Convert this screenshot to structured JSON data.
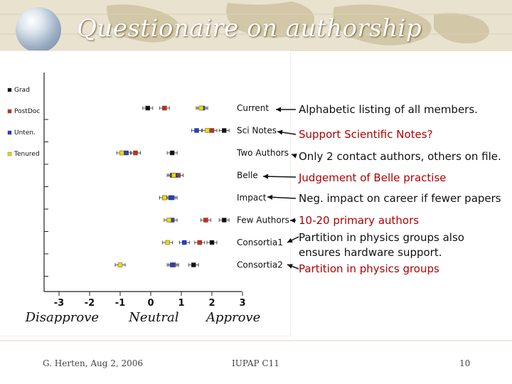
{
  "slide": {
    "title": "Questionaire on authorship",
    "footer": {
      "left": "G. Herten,  Aug 2, 2006",
      "center": "IUPAP C11",
      "right": "10"
    }
  },
  "annotations": [
    {
      "text": "Alphabetic listing of all members.",
      "color": "#111111"
    },
    {
      "text": "Support Scientific Notes?",
      "color": "#b00000"
    },
    {
      "text": "Only 2 contact authors, others on file.",
      "color": "#111111"
    },
    {
      "text": "Judgement of Belle practise",
      "color": "#b00000"
    },
    {
      "text": "Neg. impact on career if fewer papers",
      "color": "#111111"
    },
    {
      "text": "10-20 primary authors",
      "color": "#b00000"
    },
    {
      "text": "Partition in physics groups also",
      "color": "#111111"
    },
    {
      "text": "ensures hardware support.",
      "color": "#111111"
    },
    {
      "text": "Partition in physics groups",
      "color": "#b00000"
    }
  ],
  "chart_data": {
    "type": "scatter",
    "categories": [
      "Current",
      "Sci Notes",
      "Two Authors",
      "Belle",
      "Impact",
      "Few Authors",
      "Consortia1",
      "Consortia2"
    ],
    "x_ticks": [
      "-3",
      "-2",
      "-1",
      "0",
      "1",
      "2",
      "3"
    ],
    "xlim": [
      -3.5,
      3.5
    ],
    "bottom_labels": [
      {
        "text": "Disapprove",
        "at": -2.9
      },
      {
        "text": "Neutral",
        "at": 0.1
      },
      {
        "text": "Approve",
        "at": 2.7
      }
    ],
    "legend_position": "left",
    "series": [
      {
        "name": "Grad",
        "color": "#111111",
        "values": [
          -0.1,
          2.4,
          0.7,
          0.7,
          0.65,
          2.4,
          2.0,
          1.4
        ]
      },
      {
        "name": "PostDoc",
        "color": "#d42a16",
        "values": [
          0.45,
          2.0,
          -0.5,
          0.9,
          0.45,
          1.8,
          1.6,
          0.75
        ]
      },
      {
        "name": "Unten.",
        "color": "#1c3fd6",
        "values": [
          1.7,
          1.5,
          -0.8,
          0.8,
          0.7,
          0.7,
          1.1,
          0.7
        ]
      },
      {
        "name": "Tenured",
        "color": "#f0d800",
        "values": [
          1.65,
          1.85,
          -0.95,
          0.75,
          0.45,
          0.6,
          0.55,
          -1.0
        ]
      }
    ]
  }
}
